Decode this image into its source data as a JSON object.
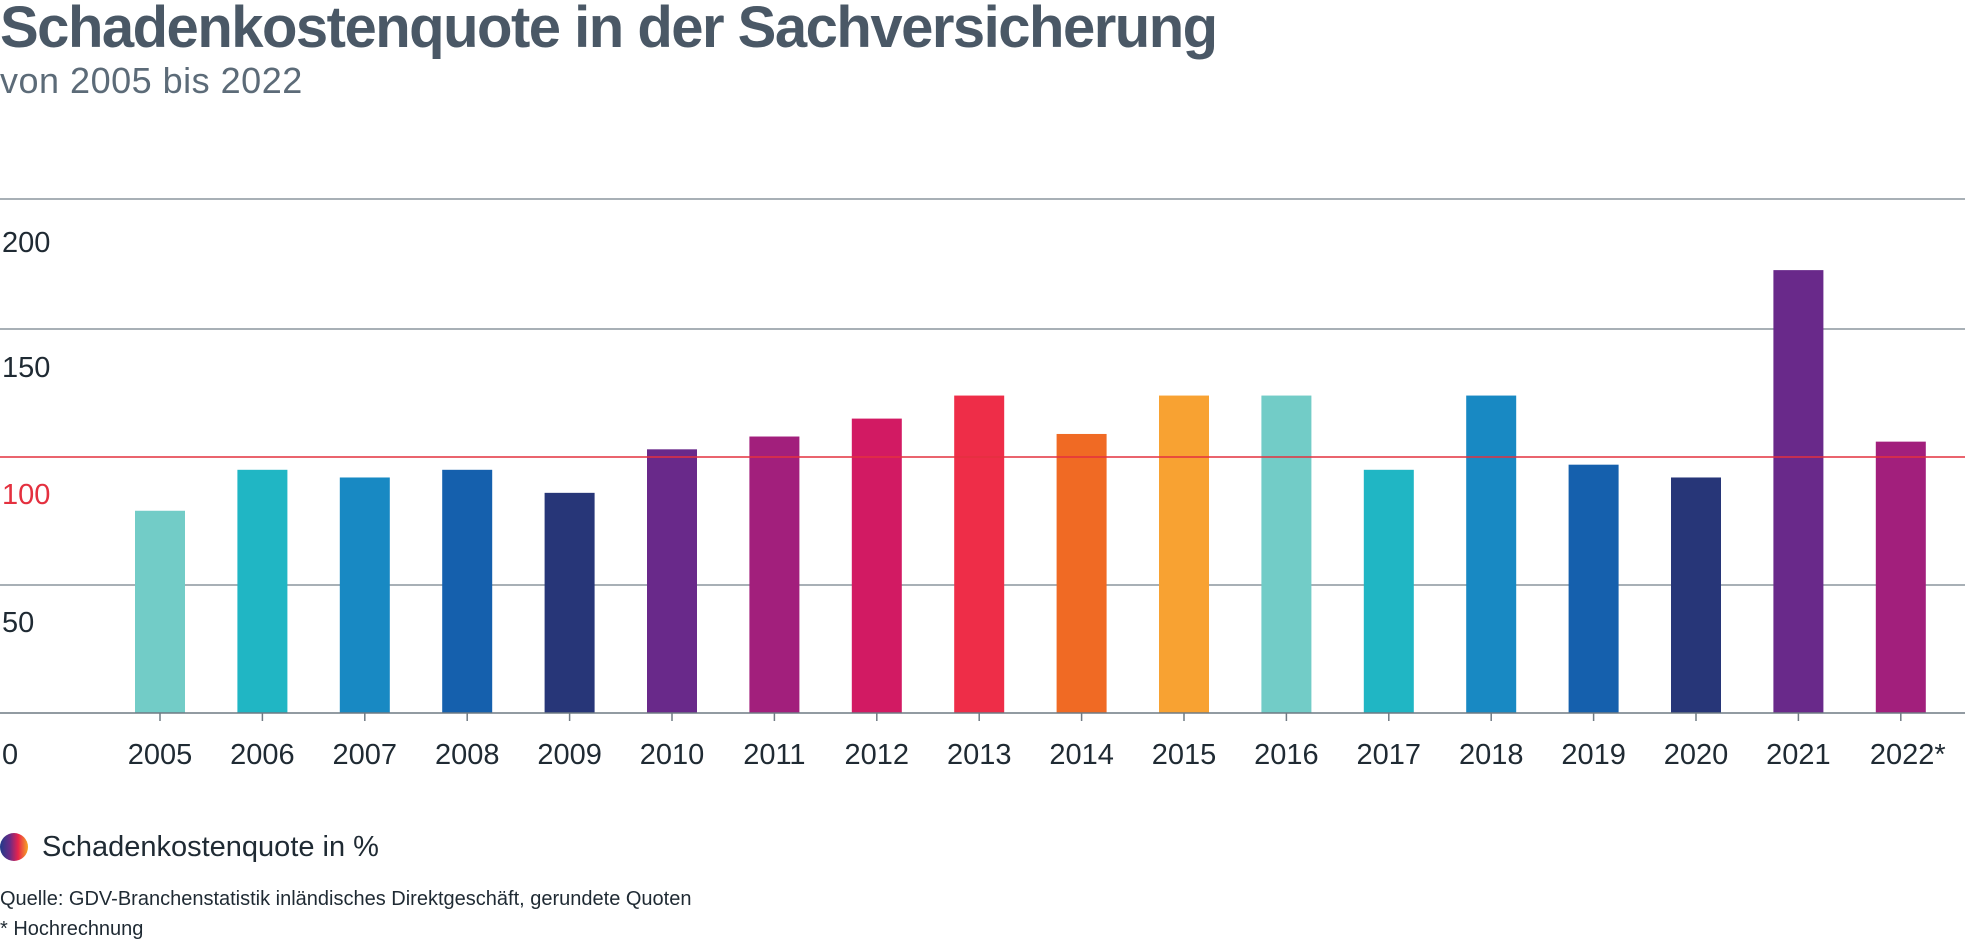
{
  "chart_data": {
    "type": "bar",
    "title": "Schadenkostenquote in der Sachversicherung",
    "subtitle": "von 2005 bis 2022",
    "categories": [
      "2005",
      "2006",
      "2007",
      "2008",
      "2009",
      "2010",
      "2011",
      "2012",
      "2013",
      "2014",
      "2015",
      "2016",
      "2017",
      "2018",
      "2019",
      "2020",
      "2021",
      "2022*"
    ],
    "series": [
      {
        "name": "Schadenkostenquote in %",
        "values": [
          79,
          95,
          92,
          95,
          86,
          103,
          108,
          115,
          124,
          109,
          124,
          124,
          95,
          124,
          97,
          92,
          173,
          106
        ]
      }
    ],
    "bar_colors": [
      "#72ccc7",
      "#20b6c4",
      "#1889c3",
      "#1560ad",
      "#273678",
      "#69298a",
      "#a21f7c",
      "#d21a63",
      "#ee2d48",
      "#f06a24",
      "#f8a232",
      "#72ccc7",
      "#20b6c4",
      "#1889c3",
      "#1560ad",
      "#273678",
      "#69298a",
      "#a21f7c"
    ],
    "y_ticks": [
      "0",
      "50",
      "100",
      "150",
      "200"
    ],
    "ylim": [
      0,
      200
    ],
    "reference_line": {
      "value": 100,
      "color": "#e4303f"
    },
    "grid": true,
    "legend_position": "bottom-left",
    "legend_label": "Schadenkostenquote in %",
    "source": "Quelle: GDV-Branchenstatistik inländisches Direktgeschäft, gerundete Quoten",
    "footnote": "* Hochrechnung"
  }
}
